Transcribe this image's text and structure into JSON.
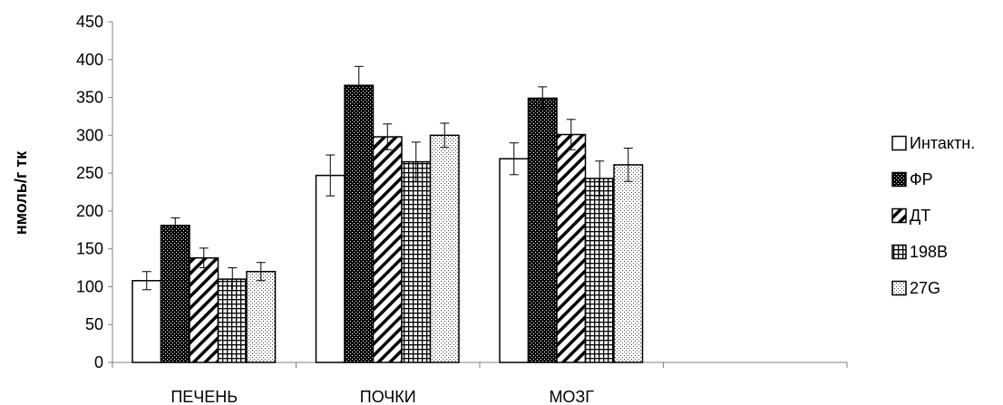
{
  "chart_data": {
    "type": "bar",
    "categories": [
      "ПЕЧЕНЬ",
      "ПОЧКИ",
      "МОЗГ",
      ""
    ],
    "series": [
      {
        "name": "Интактн.",
        "pattern": "white",
        "values": [
          108,
          247,
          269,
          null
        ],
        "errors": [
          12,
          27,
          21,
          null
        ]
      },
      {
        "name": "ФР",
        "pattern": "black",
        "values": [
          181,
          366,
          349,
          null
        ],
        "errors": [
          10,
          25,
          15,
          null
        ]
      },
      {
        "name": "ДТ",
        "pattern": "diagonal",
        "values": [
          138,
          298,
          301,
          null
        ],
        "errors": [
          13,
          17,
          20,
          null
        ]
      },
      {
        "name": "198B",
        "pattern": "grid",
        "values": [
          110,
          265,
          243,
          null
        ],
        "errors": [
          15,
          26,
          23,
          null
        ]
      },
      {
        "name": "27G",
        "pattern": "dots",
        "values": [
          120,
          300,
          261,
          null
        ],
        "errors": [
          12,
          16,
          22,
          null
        ]
      }
    ],
    "xlabel": "",
    "ylabel": "нмоль/г тк",
    "ylim": [
      0,
      450
    ],
    "yticks": [
      0,
      50,
      100,
      150,
      200,
      250,
      300,
      350,
      400,
      450
    ],
    "grid": false,
    "legend": "right",
    "colors": {
      "axis": "#808080",
      "bar_stroke": "#000000",
      "error": "#000000"
    }
  }
}
